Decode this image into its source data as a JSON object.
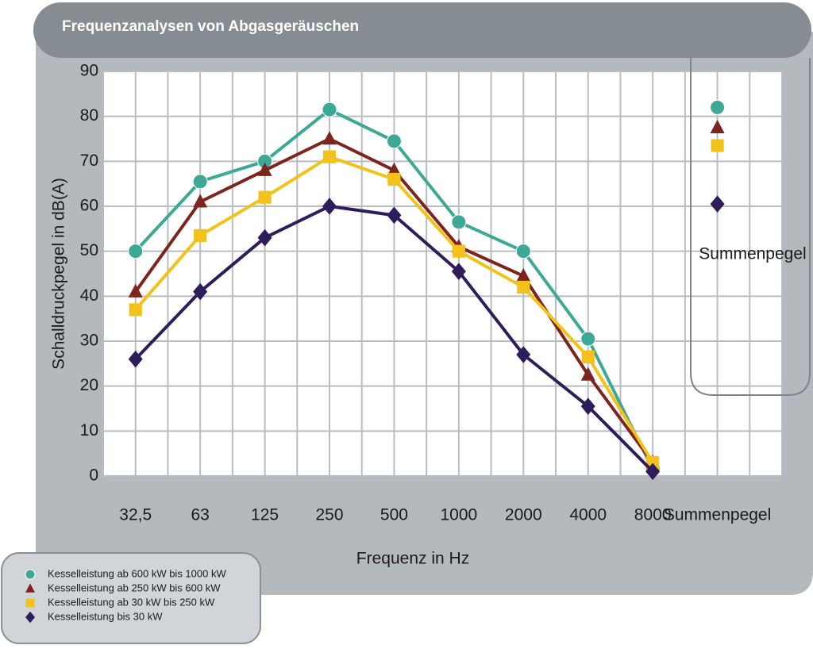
{
  "chart_data": {
    "type": "line",
    "title": "Frequenzanalysen von Abgasgeräuschen",
    "x_label": "Frequenz in Hz",
    "y_label": "Schalldruckpegel in dB(A)",
    "summary_label": "Summenpegel",
    "categories": [
      "32,5",
      "63",
      "125",
      "250",
      "500",
      "1000",
      "2000",
      "4000",
      "8000",
      "Summenpegel"
    ],
    "ylim": [
      0,
      90
    ],
    "yticks": [
      0,
      10,
      20,
      30,
      40,
      50,
      60,
      70,
      80,
      90
    ],
    "grid": true,
    "legend": "bottom-left",
    "series": [
      {
        "name": "Kesselleistung ab 600 kW bis 1000 kW",
        "color": "#3ea896",
        "marker": "circle",
        "values": [
          50,
          65.5,
          70,
          81.5,
          74.5,
          56.5,
          50,
          30.5,
          1.5,
          82
        ]
      },
      {
        "name": "Kesselleistung ab 250 kW bis 600 kW",
        "color": "#7e241e",
        "marker": "triangle",
        "values": [
          41,
          61,
          68,
          75,
          68,
          51,
          44.5,
          22.5,
          3,
          77.5
        ]
      },
      {
        "name": "Kesselleistung ab 30 kW bis 250 kW",
        "color": "#f2c21b",
        "marker": "square",
        "values": [
          37,
          53.5,
          62,
          71,
          66,
          50,
          42,
          26.5,
          3,
          73.5
        ]
      },
      {
        "name": "Kesselleistung bis 30 kW",
        "color": "#2e1d5a",
        "marker": "diamond",
        "values": [
          26,
          41,
          53,
          60,
          58,
          45.5,
          27,
          15.5,
          1,
          60.5
        ]
      }
    ]
  }
}
